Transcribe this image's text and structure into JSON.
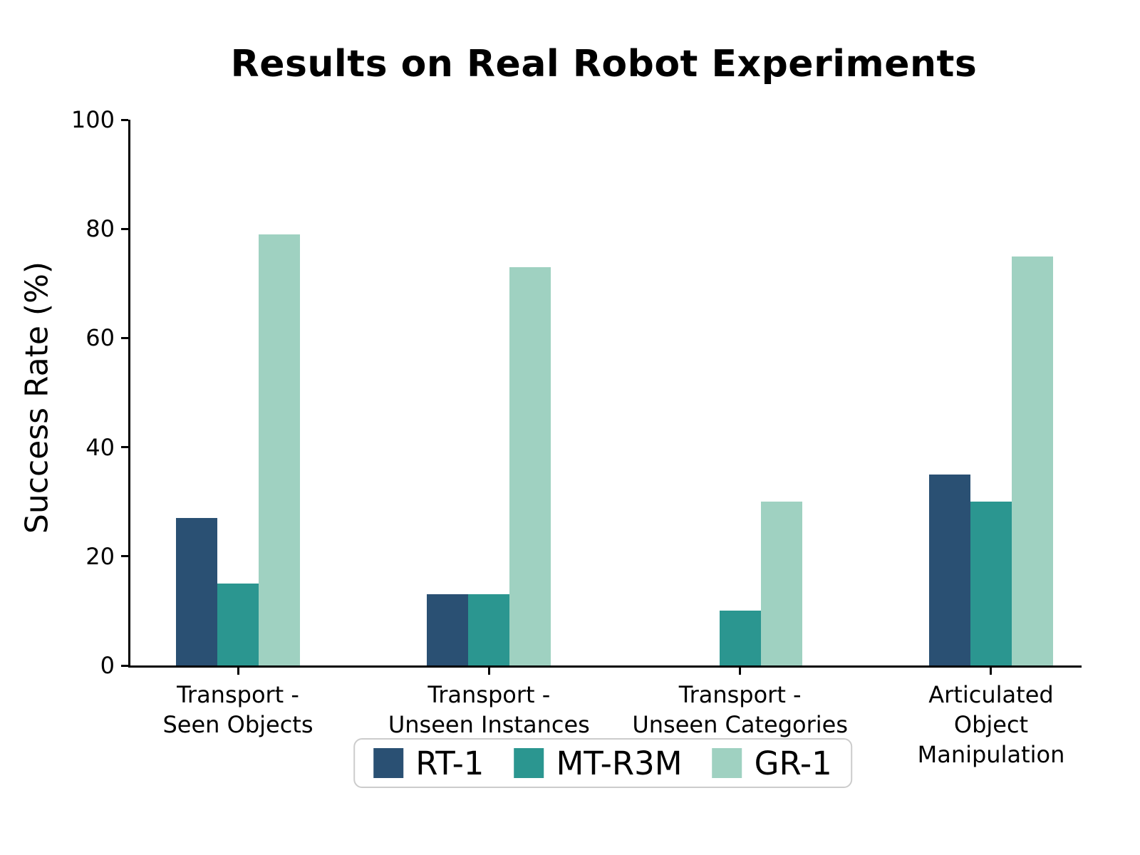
{
  "chart_data": {
    "type": "bar",
    "title": "Results on Real Robot Experiments",
    "xlabel": "",
    "ylabel": "Success Rate (%)",
    "ylim": [
      0,
      100
    ],
    "yticks": [
      0,
      20,
      40,
      60,
      80,
      100
    ],
    "grid": false,
    "legend_position": "bottom-center",
    "categories": [
      "Transport -\nSeen Objects",
      "Transport -\nUnseen Instances",
      "Transport -\nUnseen Categories",
      "Articulated Object\nManipulation"
    ],
    "series": [
      {
        "name": "RT-1",
        "color": "#2a5073",
        "values": [
          27,
          13,
          0,
          35
        ]
      },
      {
        "name": "MT-R3M",
        "color": "#2b9690",
        "values": [
          15,
          13,
          10,
          30
        ]
      },
      {
        "name": "GR-1",
        "color": "#9fd1c1",
        "values": [
          79,
          73,
          30,
          75
        ]
      }
    ]
  },
  "colors": {
    "axis": "#000000",
    "legend_border": "#cccccc",
    "background": "#ffffff"
  }
}
